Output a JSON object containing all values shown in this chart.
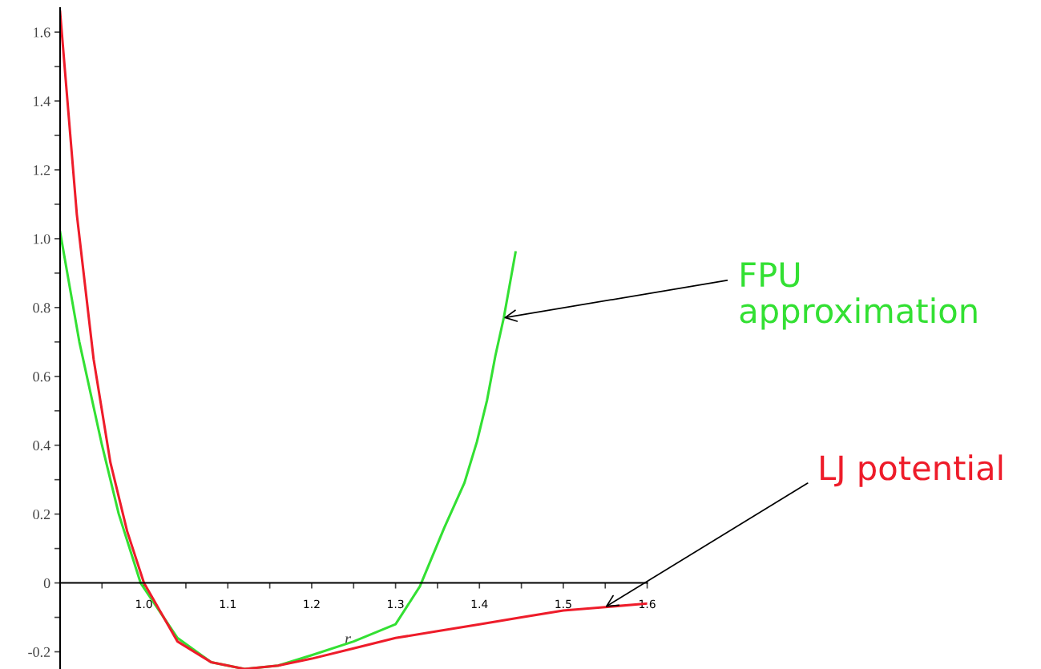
{
  "chart_data": {
    "type": "line",
    "xlabel": "r",
    "xlim": [
      0.9,
      1.6
    ],
    "ylim": [
      -0.25,
      1.67
    ],
    "xticks": [
      {
        "value": 0.95,
        "label": null
      },
      {
        "value": 1.0,
        "label": "1.0"
      },
      {
        "value": 1.05,
        "label": null
      },
      1.1,
      {
        "value": 1.15,
        "label": null
      },
      1.2,
      {
        "value": 1.25,
        "label": null
      },
      1.3,
      {
        "value": 1.35,
        "label": null
      },
      1.4,
      {
        "value": 1.45,
        "label": null
      },
      1.5,
      {
        "value": 1.55,
        "label": null
      },
      1.6
    ],
    "yticks": [
      -0.2,
      {
        "value": -0.1,
        "label": null
      },
      0,
      {
        "value": 0.1,
        "label": null
      },
      0.2,
      {
        "value": 0.3,
        "label": null
      },
      0.4,
      {
        "value": 0.5,
        "label": null
      },
      0.6,
      {
        "value": 0.7,
        "label": null
      },
      0.8,
      {
        "value": 0.9,
        "label": null
      },
      {
        "value": 1.0,
        "label": "1.0"
      },
      {
        "value": 1.1,
        "label": null
      },
      1.2,
      {
        "value": 1.3,
        "label": null
      },
      1.4,
      {
        "value": 1.5,
        "label": null
      },
      1.6
    ],
    "grid": false,
    "legend": false,
    "series": [
      {
        "name": "FPU approximation",
        "color": "#33e033",
        "x": [
          0.9,
          0.923,
          0.95,
          0.97,
          0.996,
          1.04,
          1.08,
          1.12,
          1.16,
          1.2,
          1.25,
          1.3,
          1.329,
          1.358,
          1.382,
          1.397,
          1.409,
          1.419,
          1.429,
          1.443
        ],
        "values": [
          1.02,
          0.7,
          0.4,
          0.2,
          0.0,
          -0.16,
          -0.23,
          -0.25,
          -0.24,
          -0.21,
          -0.17,
          -0.12,
          -0.01,
          0.16,
          0.29,
          0.41,
          0.53,
          0.66,
          0.77,
          0.96
        ]
      },
      {
        "name": "LJ potential",
        "color": "#ee1c2a",
        "x": [
          0.9,
          0.92,
          0.94,
          0.96,
          0.98,
          1.0,
          1.04,
          1.08,
          1.12,
          1.16,
          1.2,
          1.25,
          1.3,
          1.35,
          1.4,
          1.45,
          1.5,
          1.55,
          1.6
        ],
        "values": [
          1.66,
          1.07,
          0.65,
          0.35,
          0.15,
          0.0,
          -0.17,
          -0.23,
          -0.25,
          -0.24,
          -0.22,
          -0.19,
          -0.16,
          -0.14,
          -0.12,
          -0.1,
          -0.08,
          -0.07,
          -0.06
        ]
      }
    ]
  }
}
